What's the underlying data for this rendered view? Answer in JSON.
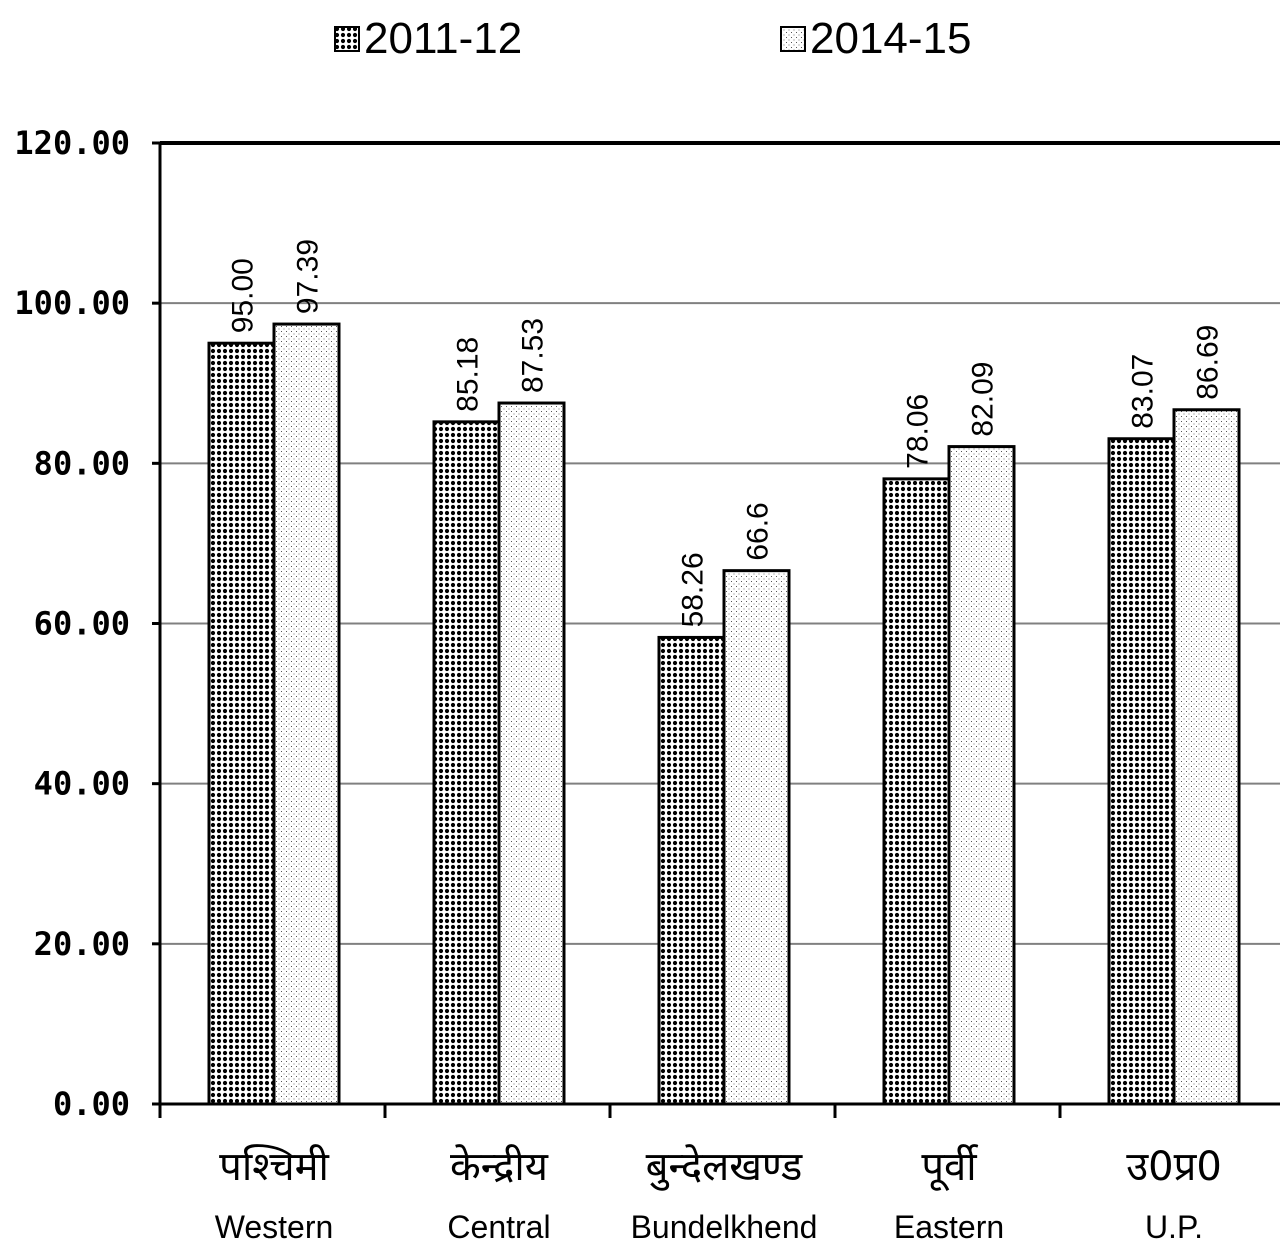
{
  "chart_data": {
    "type": "bar",
    "categories": [
      "पश्चिमी",
      "केन्द्रीय",
      "बुन्देलखण्ड",
      "पूर्वी",
      "उ0प्र0"
    ],
    "categories_en": [
      "Western",
      "Central",
      "Bundelkhend",
      "Eastern",
      "U.P."
    ],
    "series": [
      {
        "name": "2011-12",
        "values": [
          95.0,
          85.18,
          58.26,
          78.06,
          83.07
        ],
        "labels": [
          "95.00",
          "85.18",
          "58.26",
          "78.06",
          "83.07"
        ],
        "pattern": "dense-dots"
      },
      {
        "name": "2014-15",
        "values": [
          97.39,
          87.53,
          66.6,
          82.09,
          86.69
        ],
        "labels": [
          "97.39",
          "87.53",
          "66.6",
          "82.09",
          "86.69"
        ],
        "pattern": "light-stipple"
      }
    ],
    "ylim": [
      0,
      120
    ],
    "yticks": [
      "0.00",
      "20.00",
      "40.00",
      "60.00",
      "80.00",
      "100.00",
      "120.00"
    ],
    "grid": true,
    "legend": "top"
  },
  "colors": {
    "bar_fill": "#ffffff",
    "bar_outline": "#000000",
    "grid": "#808080",
    "axis": "#000000"
  }
}
